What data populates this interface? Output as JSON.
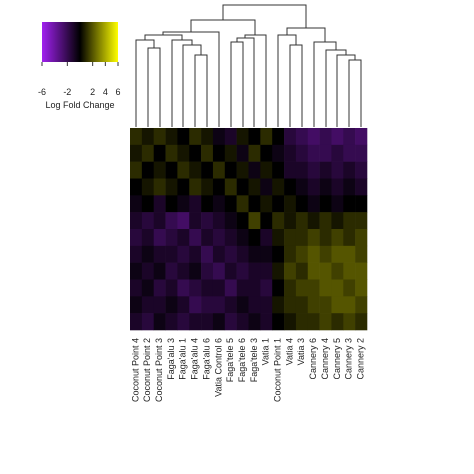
{
  "chart_data": {
    "type": "heatmap",
    "columns": [
      "Coconut Point 4",
      "Coconut Point 2",
      "Coconut Point 3",
      "Faga'alu 3",
      "Faga'alu 1",
      "Faga'alu 4",
      "Faga'alu 6",
      "Vatia Control 6",
      "Faga'tele 5",
      "Faga'tele 6",
      "Faga'tele 3",
      "Vatia 1",
      "Coconut Point 1",
      "Vatia 4",
      "Vatia 3",
      "Cannery 6",
      "Cannery 4",
      "Cannery 5",
      "Cannery 3",
      "Cannery 2"
    ],
    "values": [
      [
        1,
        0.5,
        1,
        0.5,
        0,
        1,
        0.5,
        -0.5,
        -1,
        0.5,
        0,
        1,
        0,
        -1.5,
        -2,
        -2.5,
        -2,
        -2.5,
        -2,
        -2.5
      ],
      [
        0.5,
        1,
        0,
        1,
        0.5,
        0,
        1,
        0,
        0.5,
        -0.5,
        1,
        0,
        -0.5,
        -1,
        -1.5,
        -2,
        -2,
        -1.5,
        -2,
        -2
      ],
      [
        1,
        0,
        0.5,
        0,
        1,
        0.5,
        0,
        1,
        0,
        0.5,
        -0.5,
        0.5,
        0,
        -1,
        -1,
        -1.5,
        -1,
        -1.5,
        -1,
        -1.5
      ],
      [
        0,
        0.5,
        1,
        0.5,
        0,
        1,
        0.5,
        0,
        1,
        0,
        0.5,
        -0.5,
        0.5,
        0,
        -0.5,
        -1,
        -0.5,
        -1,
        -0.5,
        -1
      ],
      [
        -0.5,
        0,
        -1,
        0,
        -0.5,
        -1,
        0,
        -0.5,
        0,
        1,
        0,
        0.5,
        0,
        0.5,
        0,
        -0.5,
        0,
        -0.5,
        0,
        0
      ],
      [
        -1,
        -1.5,
        -1,
        -2,
        -2.5,
        -1,
        -1.5,
        -1,
        -0.5,
        0,
        1.5,
        0,
        1,
        0.5,
        1,
        0.5,
        1,
        0.5,
        1,
        1
      ],
      [
        -1.5,
        -1,
        -2,
        -1.5,
        -1,
        -2,
        -1,
        -1.5,
        -1,
        -0.5,
        0,
        -1,
        0.5,
        1,
        1,
        1.5,
        1,
        1.5,
        1,
        1.5
      ],
      [
        -1,
        -0.5,
        -1,
        -1,
        -1.5,
        -1,
        -2,
        -1,
        -1.5,
        -1,
        -0.5,
        -0.5,
        0,
        1,
        1.5,
        2,
        1.5,
        2,
        2,
        1.5
      ],
      [
        -0.5,
        -1,
        -0.5,
        -1.5,
        -1,
        -0.5,
        -1.5,
        -2,
        -1,
        -1.5,
        -1,
        -1,
        0.5,
        1.5,
        1,
        2,
        2,
        1.5,
        2,
        2
      ],
      [
        -1,
        -0.5,
        -1.5,
        -1,
        -2,
        -1.5,
        -1,
        -1,
        -2,
        -1,
        -1,
        -1.5,
        0,
        1,
        1.5,
        1.5,
        2,
        2,
        1.5,
        2
      ],
      [
        -0.5,
        -1,
        -1,
        -0.5,
        -1,
        -2,
        -1.5,
        -1.5,
        -1,
        -0.5,
        -1,
        -1,
        0.5,
        1,
        1,
        1.5,
        1.5,
        2,
        2,
        1.5
      ],
      [
        -1,
        -1.5,
        -0.5,
        -1,
        -1.5,
        -1,
        -1,
        -0.5,
        -1.5,
        -1,
        -0.5,
        -1,
        0,
        0.5,
        1,
        1,
        1.5,
        1,
        1.5,
        1
      ]
    ],
    "colors": [
      "#a020f0",
      "#000000",
      "#ffff00"
    ],
    "zlim": [
      -6,
      6
    ],
    "zticks": [
      -6,
      -2,
      2,
      4,
      6
    ],
    "legend_title": "Log Fold Change"
  }
}
